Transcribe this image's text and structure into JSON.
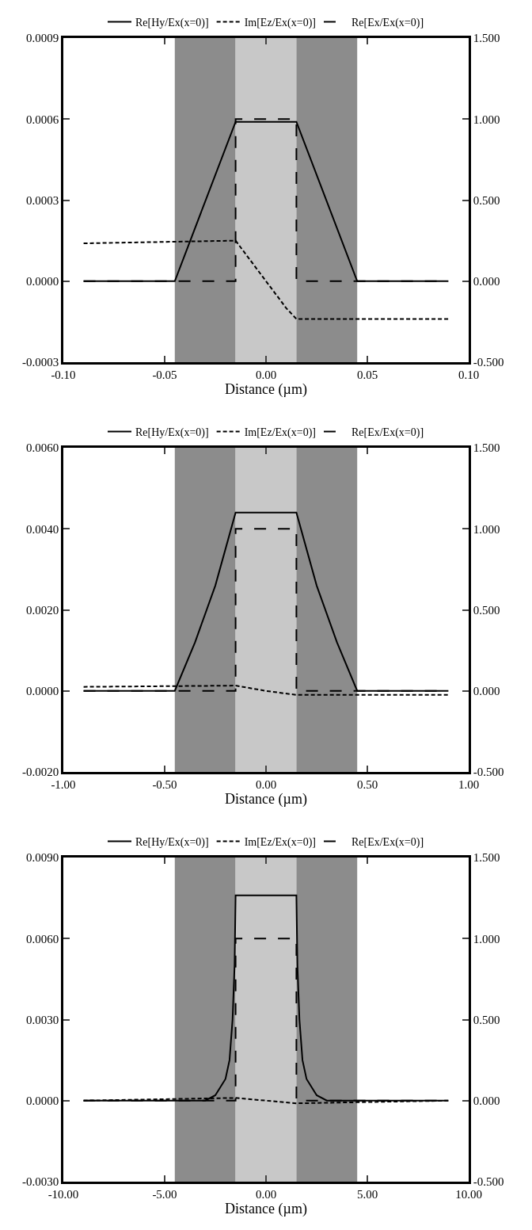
{
  "chart_data": [
    {
      "type": "line",
      "xlabel": "Distance (µm)",
      "xlim": [
        -0.1,
        0.1
      ],
      "xticks": [
        {
          "value": -0.1,
          "label": "-0.10"
        },
        {
          "value": -0.05,
          "label": "-0.05"
        },
        {
          "value": 0,
          "label": "0.00"
        },
        {
          "value": 0.05,
          "label": "0.05"
        },
        {
          "value": 0.1,
          "label": "0.10"
        }
      ],
      "ylim": [
        -0.0003,
        0.0009
      ],
      "yticks": [
        {
          "value": -0.0003,
          "label": "-0.0003"
        },
        {
          "value": 0,
          "label": "0.0000"
        },
        {
          "value": 0.0003,
          "label": "0.0003"
        },
        {
          "value": 0.0006,
          "label": "0.0006"
        },
        {
          "value": 0.0009,
          "label": "0.0009"
        }
      ],
      "y2lim": [
        -0.5,
        1.5
      ],
      "y2ticks": [
        {
          "value": -0.5,
          "label": "-0.500"
        },
        {
          "value": 0,
          "label": "0.000"
        },
        {
          "value": 0.5,
          "label": "0.500"
        },
        {
          "value": 1,
          "label": "1.000"
        },
        {
          "value": 1.5,
          "label": "1.500"
        }
      ],
      "grid": false,
      "legend": "top",
      "marker": "none",
      "bands": [
        {
          "axis": "x",
          "from": -0.045,
          "to": -0.015,
          "color": "#8c8c8c"
        },
        {
          "axis": "x",
          "from": -0.015,
          "to": 0.015,
          "color": "#c8c8c8"
        },
        {
          "axis": "x",
          "from": 0.015,
          "to": 0.045,
          "color": "#8c8c8c"
        }
      ],
      "series": [
        {
          "name": "Re[Hy/Ex(x=0)]",
          "color": "#000000",
          "line_style": "solid",
          "x": [
            -0.09,
            -0.045,
            -0.015,
            0.015,
            0.045,
            0.09
          ],
          "values": [
            0,
            0,
            0.00059,
            0.00059,
            0,
            0
          ]
        },
        {
          "name": "Im[Ez/Ex(x=0)]",
          "color": "#000000",
          "line_style": "dashed",
          "x": [
            -0.09,
            -0.015,
            -0.01,
            0,
            0.01,
            0.015,
            0.09
          ],
          "values": [
            0.00014,
            0.00015,
            0.0001,
            0,
            -0.0001,
            -0.00014,
            -0.00014
          ]
        },
        {
          "name": "Re[Ex/Ex(x=0)]",
          "color": "#000000",
          "line_style": "longdash",
          "axis": "y2",
          "x": [
            -0.09,
            -0.015,
            -0.015,
            0.015,
            0.015,
            0.09
          ],
          "values": [
            0,
            0,
            1,
            1,
            0,
            0
          ]
        }
      ]
    },
    {
      "type": "line",
      "xlabel": "Distance (µm)",
      "xlim": [
        -1,
        1
      ],
      "xticks": [
        {
          "value": -1,
          "label": "-1.00"
        },
        {
          "value": -0.5,
          "label": "-0.50"
        },
        {
          "value": 0,
          "label": "0.00"
        },
        {
          "value": 0.5,
          "label": "0.50"
        },
        {
          "value": 1,
          "label": "1.00"
        }
      ],
      "ylim": [
        -0.002,
        0.006
      ],
      "yticks": [
        {
          "value": -0.002,
          "label": "-0.0020"
        },
        {
          "value": 0,
          "label": "0.0000"
        },
        {
          "value": 0.002,
          "label": "0.0020"
        },
        {
          "value": 0.004,
          "label": "0.0040"
        },
        {
          "value": 0.006,
          "label": "0.0060"
        }
      ],
      "y2lim": [
        -0.5,
        1.5
      ],
      "y2ticks": [
        {
          "value": -0.5,
          "label": "-0.500"
        },
        {
          "value": 0,
          "label": "0.000"
        },
        {
          "value": 0.5,
          "label": "0.500"
        },
        {
          "value": 1,
          "label": "1.000"
        },
        {
          "value": 1.5,
          "label": "1.500"
        }
      ],
      "grid": false,
      "legend": "top",
      "marker": "none",
      "bands": [
        {
          "axis": "x",
          "from": -0.45,
          "to": -0.15,
          "color": "#8c8c8c"
        },
        {
          "axis": "x",
          "from": -0.15,
          "to": 0.15,
          "color": "#c8c8c8"
        },
        {
          "axis": "x",
          "from": 0.15,
          "to": 0.45,
          "color": "#8c8c8c"
        }
      ],
      "series": [
        {
          "name": "Re[Hy/Ex(x=0)]",
          "color": "#000000",
          "line_style": "solid",
          "x": [
            -0.9,
            -0.45,
            -0.35,
            -0.25,
            -0.15,
            0.15,
            0.25,
            0.35,
            0.45,
            0.9
          ],
          "values": [
            0,
            0,
            0.0012,
            0.0026,
            0.0044,
            0.0044,
            0.0026,
            0.0012,
            0,
            0
          ]
        },
        {
          "name": "Im[Ez/Ex(x=0)]",
          "color": "#000000",
          "line_style": "dashed",
          "x": [
            -0.9,
            -0.15,
            0,
            0.15,
            0.9
          ],
          "values": [
            0.0001,
            0.00013,
            0,
            -0.0001,
            -0.0001
          ]
        },
        {
          "name": "Re[Ex/Ex(x=0)]",
          "color": "#000000",
          "line_style": "longdash",
          "axis": "y2",
          "x": [
            -0.9,
            -0.15,
            -0.15,
            0.15,
            0.15,
            0.9
          ],
          "values": [
            0,
            0,
            1,
            1,
            0,
            0
          ]
        }
      ]
    },
    {
      "type": "line",
      "xlabel": "Distance (µm)",
      "xlim": [
        -10,
        10
      ],
      "xticks": [
        {
          "value": -10,
          "label": "-10.00"
        },
        {
          "value": -5,
          "label": "-5.00"
        },
        {
          "value": 0,
          "label": "0.00"
        },
        {
          "value": 5,
          "label": "5.00"
        },
        {
          "value": 10,
          "label": "10.00"
        }
      ],
      "ylim": [
        -0.003,
        0.009
      ],
      "yticks": [
        {
          "value": -0.003,
          "label": "-0.0030"
        },
        {
          "value": 0,
          "label": "0.0000"
        },
        {
          "value": 0.003,
          "label": "0.0030"
        },
        {
          "value": 0.006,
          "label": "0.0060"
        },
        {
          "value": 0.009,
          "label": "0.0090"
        }
      ],
      "y2lim": [
        -0.5,
        1.5
      ],
      "y2ticks": [
        {
          "value": -0.5,
          "label": "-0.500"
        },
        {
          "value": 0,
          "label": "0.000"
        },
        {
          "value": 0.5,
          "label": "0.500"
        },
        {
          "value": 1,
          "label": "1.000"
        },
        {
          "value": 1.5,
          "label": "1.500"
        }
      ],
      "grid": false,
      "legend": "top",
      "marker": "none",
      "bands": [
        {
          "axis": "x",
          "from": -4.5,
          "to": -1.5,
          "color": "#8c8c8c"
        },
        {
          "axis": "x",
          "from": -1.5,
          "to": 1.5,
          "color": "#c8c8c8"
        },
        {
          "axis": "x",
          "from": 1.5,
          "to": 4.5,
          "color": "#8c8c8c"
        }
      ],
      "series": [
        {
          "name": "Re[Hy/Ex(x=0)]",
          "color": "#000000",
          "line_style": "solid",
          "x": [
            -9,
            -4,
            -3,
            -2.5,
            -2,
            -1.8,
            -1.65,
            -1.55,
            -1.5,
            1.5,
            1.55,
            1.65,
            1.8,
            2,
            2.5,
            3,
            4,
            9
          ],
          "values": [
            0,
            0,
            0,
            0.0002,
            0.0008,
            0.0015,
            0.003,
            0.005,
            0.0076,
            0.0076,
            0.005,
            0.003,
            0.0015,
            0.0008,
            0.0002,
            0,
            0,
            0
          ]
        },
        {
          "name": "Im[Ez/Ex(x=0)]",
          "color": "#000000",
          "line_style": "dashed",
          "x": [
            -9,
            -1.5,
            1.5,
            9
          ],
          "values": [
            0,
            0.0001,
            -0.0001,
            0
          ]
        },
        {
          "name": "Re[Ex/Ex(x=0)]",
          "color": "#000000",
          "line_style": "longdash",
          "axis": "y2",
          "x": [
            -9,
            -1.5,
            -1.5,
            1.5,
            1.5,
            9
          ],
          "values": [
            0,
            0,
            1,
            1,
            0,
            0
          ]
        }
      ]
    }
  ]
}
